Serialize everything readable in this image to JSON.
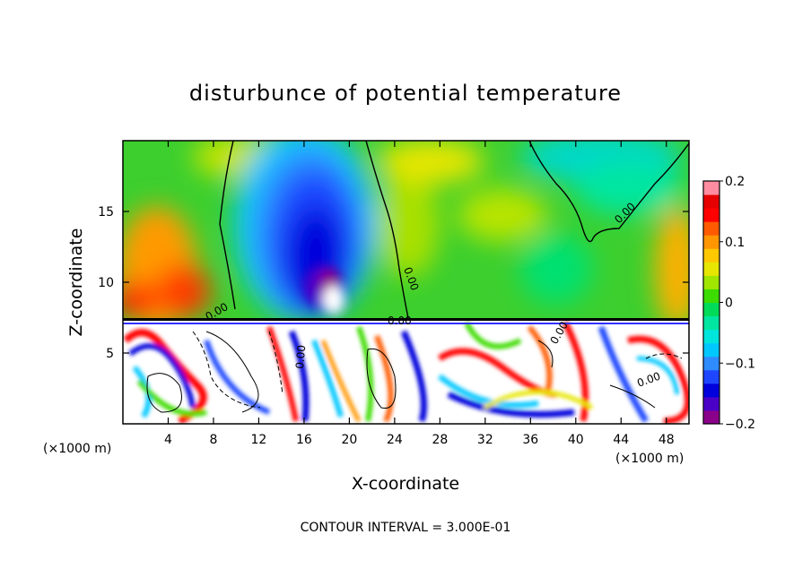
{
  "chart_data": {
    "type": "heatmap",
    "title": "disturbunce of potential temperature",
    "xlabel": "X-coordinate",
    "ylabel": "Z-coordinate",
    "x_unit_label": "(×1000 m)",
    "x_ticks": [
      4,
      8,
      12,
      16,
      20,
      24,
      28,
      32,
      36,
      40,
      44,
      48
    ],
    "y_ticks": [
      5,
      10,
      15
    ],
    "xlim": [
      0,
      50
    ],
    "ylim": [
      0,
      20
    ],
    "colorbar": {
      "ticks": [
        0.2,
        0.1,
        0,
        -0.1,
        -0.2
      ],
      "tick_labels": [
        "0.2",
        "0.1",
        "0",
        "−0.1",
        "−0.2"
      ],
      "range": [
        -0.2,
        0.2
      ],
      "colors": [
        "#8b008b",
        "#4b00c8",
        "#0000dc",
        "#1e46ff",
        "#2f8cff",
        "#00c8ff",
        "#00e6dc",
        "#00e6a0",
        "#00dc5a",
        "#3cdc00",
        "#a0e600",
        "#e6e600",
        "#ffc800",
        "#ff9600",
        "#ff5a00",
        "#ff0000",
        "#e60000",
        "#ff8ca0"
      ]
    },
    "contour_labels": [
      "0.00",
      "0.00",
      "0.00",
      "0.00",
      "0.00",
      "0.00",
      "0.00"
    ],
    "contour_interval_text": "CONTOUR INTERVAL = 3.000E-01",
    "grid": false,
    "legend": "colorbar-right"
  }
}
